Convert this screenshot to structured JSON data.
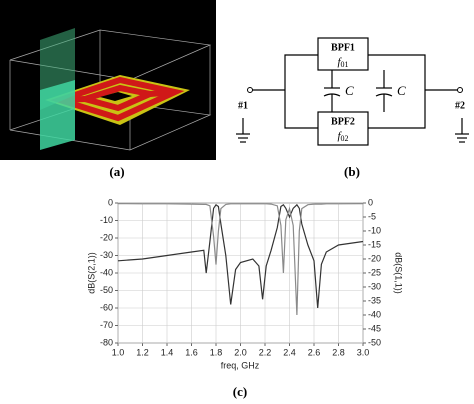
{
  "panel_labels": [
    "(a)",
    "(b)",
    "(c)"
  ],
  "circuit": {
    "filter_top": {
      "name": "BPF1",
      "freq": [
        "f",
        "01"
      ]
    },
    "filter_bottom": {
      "name": "BPF2",
      "freq": [
        "f",
        "02"
      ]
    },
    "capacitors": [
      "C",
      "C"
    ],
    "port_left": "#1",
    "port_right": "#2"
  },
  "chart_data": {
    "type": "line",
    "xlabel": "freq, GHz",
    "ylabel": "dB(S(2,1))",
    "y2label": "dB(S(1,1))",
    "x": [
      1.0,
      1.2,
      1.4,
      1.6,
      1.7,
      1.72,
      1.75,
      1.78,
      1.8,
      1.82,
      1.84,
      1.88,
      1.92,
      1.96,
      2.0,
      2.1,
      2.15,
      2.18,
      2.21,
      2.25,
      2.3,
      2.33,
      2.35,
      2.37,
      2.4,
      2.43,
      2.46,
      2.48,
      2.5,
      2.55,
      2.6,
      2.63,
      2.66,
      2.7,
      2.8,
      3.0
    ],
    "series": [
      {
        "color": "#333333",
        "values": [
          -33,
          -32,
          -30,
          -28,
          -27,
          -40,
          -22,
          -3,
          -1,
          -2,
          -12,
          -30,
          -58,
          -38,
          -34,
          -32,
          -36,
          -55,
          -36,
          -27,
          -14,
          -2,
          -1,
          -3,
          -8,
          -3,
          -1,
          -3,
          -12,
          -24,
          -33,
          -60,
          -35,
          -28,
          -24,
          -22
        ]
      },
      {
        "color": "#8a8a8a",
        "axis": "y2",
        "values": [
          -0.2,
          -0.3,
          -0.3,
          -0.4,
          -0.5,
          -0.5,
          -1,
          -12,
          -22,
          -10,
          -2,
          -0.5,
          -0.3,
          -0.3,
          -0.3,
          -0.3,
          -0.3,
          -0.3,
          -0.3,
          -0.4,
          -1,
          -8,
          -25,
          -6,
          -2,
          -8,
          -40,
          -10,
          -2,
          -0.6,
          -0.4,
          -0.4,
          -0.4,
          -0.3,
          -0.3,
          -0.2
        ]
      }
    ],
    "xlim": [
      1.0,
      3.0
    ],
    "xticks": [
      {
        "value": 1.0,
        "label": "1.0"
      },
      1.2,
      1.4,
      1.6,
      1.8,
      {
        "value": 2.0,
        "label": "2.0"
      },
      2.2,
      2.4,
      2.6,
      2.8,
      {
        "value": 3.0,
        "label": "3.0"
      }
    ],
    "ylim": [
      -80,
      0
    ],
    "yticks": [
      0,
      -10,
      -20,
      -30,
      -40,
      -50,
      -60,
      -70,
      -80
    ],
    "y2lim": [
      -50,
      0
    ],
    "y2ticks": [
      0,
      -5,
      -10,
      -15,
      -20,
      -25,
      -30,
      -35,
      -40,
      -45,
      -50
    ],
    "grid": true
  }
}
